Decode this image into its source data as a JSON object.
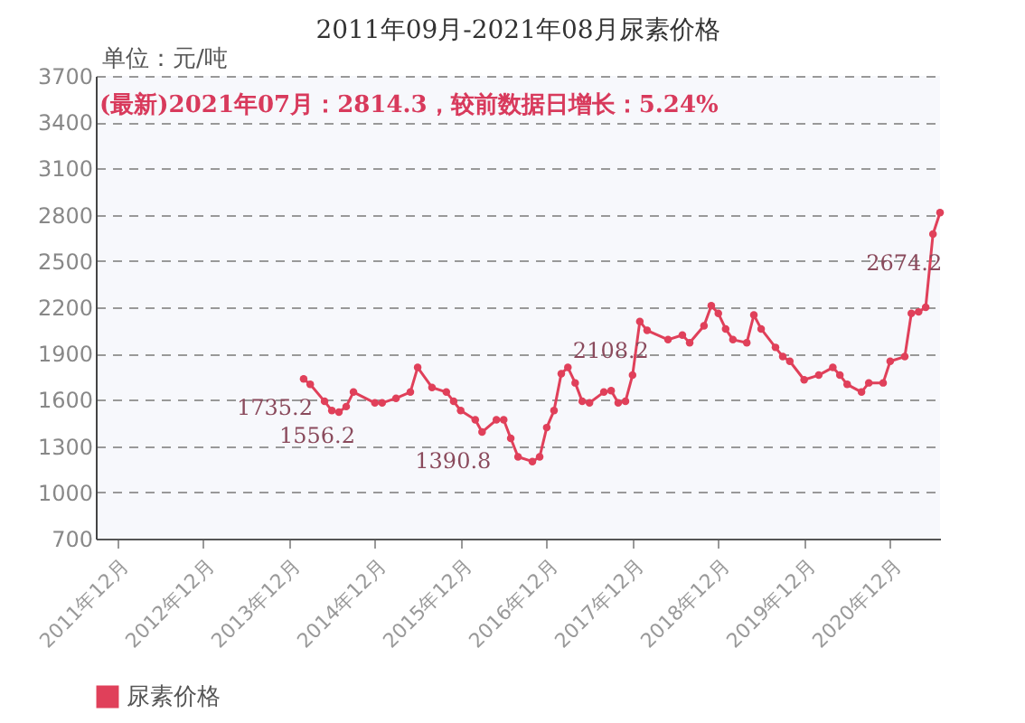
{
  "chart_data": {
    "type": "line",
    "title": "2011年09月-2021年08月尿素价格",
    "ylabel": "单位：元/吨",
    "annotations": [
      "(最新)2021年07月：2814.3，较前数据日增长：5.24%"
    ],
    "x": [
      "2014-02",
      "2014-03",
      "2014-05",
      "2014-06",
      "2014-07",
      "2014-08",
      "2014-09",
      "2014-12",
      "2015-01",
      "2015-03",
      "2015-05",
      "2015-06",
      "2015-08",
      "2015-10",
      "2015-11",
      "2015-12",
      "2016-02",
      "2016-03",
      "2016-05",
      "2016-06",
      "2016-07",
      "2016-08",
      "2016-10",
      "2016-11",
      "2016-12",
      "2017-01",
      "2017-02",
      "2017-03",
      "2017-04",
      "2017-05",
      "2017-06",
      "2017-08",
      "2017-09",
      "2017-10",
      "2017-11",
      "2017-12",
      "2018-01",
      "2018-02",
      "2018-05",
      "2018-07",
      "2018-08",
      "2018-10",
      "2018-11",
      "2018-12",
      "2019-01",
      "2019-02",
      "2019-04",
      "2019-05",
      "2019-06",
      "2019-08",
      "2019-09",
      "2019-10",
      "2019-12",
      "2020-02",
      "2020-04",
      "2020-05",
      "2020-06",
      "2020-08",
      "2020-09",
      "2020-11",
      "2020-12",
      "2021-02",
      "2021-03",
      "2021-04",
      "2021-05",
      "2021-06",
      "2021-07"
    ],
    "series": [
      {
        "name": "尿素价格",
        "color": "#e0405a",
        "values": [
          1735.2,
          1700,
          1590,
          1530,
          1520,
          1556.2,
          1650,
          1580,
          1580,
          1610,
          1650,
          1810,
          1680,
          1650,
          1590,
          1530,
          1470,
          1390.8,
          1470,
          1470,
          1350,
          1230,
          1200,
          1230,
          1420,
          1530,
          1770,
          1810,
          1710,
          1590,
          1580,
          1650,
          1660,
          1580,
          1590,
          1760,
          2108.2,
          2050,
          1990,
          2020,
          1970,
          2080,
          2210,
          2160,
          2060,
          1990,
          1970,
          2150,
          2060,
          1940,
          1880,
          1850,
          1730,
          1760,
          1810,
          1760,
          1700,
          1650,
          1710,
          1710,
          1850,
          1880,
          2160,
          2170,
          2200,
          2674.2,
          2814.3
        ],
        "value_labels": [
          "1735.2",
          null,
          null,
          null,
          null,
          "1556.2",
          null,
          null,
          null,
          null,
          null,
          null,
          null,
          null,
          null,
          null,
          null,
          "1390.8",
          null,
          null,
          null,
          null,
          null,
          null,
          null,
          null,
          null,
          null,
          null,
          null,
          null,
          null,
          null,
          null,
          null,
          null,
          "2108.2",
          null,
          null,
          null,
          null,
          null,
          null,
          null,
          null,
          null,
          null,
          null,
          null,
          null,
          null,
          null,
          null,
          null,
          null,
          null,
          null,
          null,
          null,
          null,
          null,
          null,
          null,
          null,
          null,
          "2674.2",
          null
        ]
      }
    ],
    "xlim": [
      "2011-09",
      "2021-07"
    ],
    "xticks": [
      {
        "value": "2011-12",
        "label": "2011年12月"
      },
      {
        "value": "2012-12",
        "label": "2012年12月"
      },
      {
        "value": "2013-12",
        "label": "2013年12月"
      },
      {
        "value": "2014-12",
        "label": "2014年12月"
      },
      {
        "value": "2015-12",
        "label": "2015年12月"
      },
      {
        "value": "2016-12",
        "label": "2016年12月"
      },
      {
        "value": "2017-12",
        "label": "2017年12月"
      },
      {
        "value": "2018-12",
        "label": "2018年12月"
      },
      {
        "value": "2019-12",
        "label": "2019年12月"
      },
      {
        "value": "2020-12",
        "label": "2020年12月"
      }
    ],
    "ylim": [
      700,
      3700
    ],
    "yticks": [
      700,
      1000,
      1300,
      1600,
      1900,
      2200,
      2500,
      2800,
      3100,
      3400,
      3700
    ],
    "grid": "y",
    "legend": "bottom",
    "marker": "circle",
    "line_style": "solid"
  }
}
